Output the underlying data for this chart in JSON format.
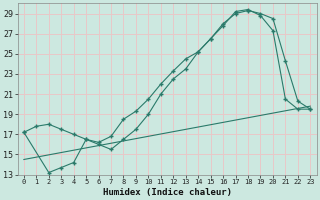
{
  "xlabel": "Humidex (Indice chaleur)",
  "bg_color": "#cce8e0",
  "grid_color": "#e8c8c8",
  "line_color": "#2a7a6a",
  "xlim": [
    -0.5,
    23.5
  ],
  "ylim": [
    13,
    30
  ],
  "xticks": [
    0,
    1,
    2,
    3,
    4,
    5,
    6,
    7,
    8,
    9,
    10,
    11,
    12,
    13,
    14,
    15,
    16,
    17,
    18,
    19,
    20,
    21,
    22,
    23
  ],
  "yticks": [
    13,
    15,
    17,
    19,
    21,
    23,
    25,
    27,
    29
  ],
  "line1_x": [
    0,
    1,
    2,
    3,
    4,
    5,
    6,
    7,
    8,
    9,
    10,
    11,
    12,
    13,
    14,
    15,
    16,
    17,
    18,
    19,
    20,
    21,
    22,
    23
  ],
  "line1_y": [
    17.2,
    17.8,
    18.0,
    17.5,
    17.0,
    16.5,
    16.2,
    16.8,
    18.5,
    19.3,
    20.5,
    22.0,
    23.3,
    24.5,
    25.2,
    26.5,
    28.0,
    29.0,
    29.3,
    29.0,
    28.5,
    24.3,
    20.3,
    19.5
  ],
  "line2_x": [
    0,
    2,
    3,
    4,
    5,
    6,
    7,
    8,
    9,
    10,
    11,
    12,
    13,
    14,
    15,
    16,
    17,
    18,
    19,
    20,
    21,
    22,
    23
  ],
  "line2_y": [
    17.2,
    13.2,
    13.7,
    14.2,
    16.5,
    16.0,
    15.5,
    16.5,
    17.5,
    19.0,
    21.0,
    22.5,
    23.5,
    25.2,
    26.5,
    27.8,
    29.2,
    29.4,
    28.8,
    27.3,
    20.5,
    19.5,
    19.5
  ],
  "line3_x": [
    0,
    23
  ],
  "line3_y": [
    14.5,
    19.8
  ]
}
